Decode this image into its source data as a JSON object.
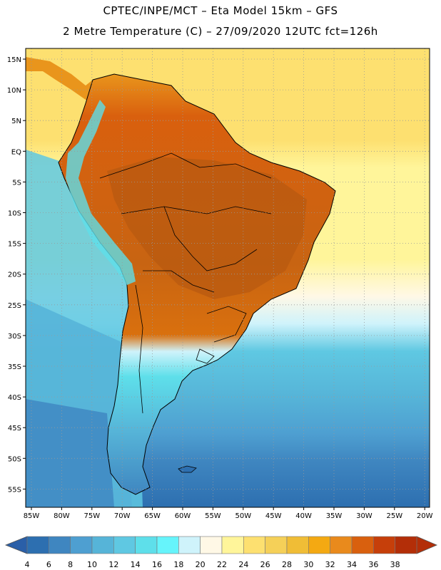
{
  "title_line1": "CPTEC/INPE/MCT  –   Eta Model 15km  –  GFS",
  "title_line2": "2 Metre Temperature (C) – 27/09/2020 12UTC fct=126h",
  "lat_labels": [
    "15N",
    "10N",
    "5N",
    "EQ",
    "5S",
    "10S",
    "15S",
    "20S",
    "25S",
    "30S",
    "35S",
    "40S",
    "45S",
    "50S",
    "55S"
  ],
  "lon_labels": [
    "85W",
    "80W",
    "75W",
    "70W",
    "65W",
    "60W",
    "55W",
    "50W",
    "45W",
    "40W",
    "35W",
    "30W",
    "25W",
    "20W"
  ],
  "colorbar": {
    "values": [
      "4",
      "6",
      "8",
      "10",
      "12",
      "14",
      "16",
      "18",
      "20",
      "22",
      "24",
      "26",
      "28",
      "30",
      "32",
      "34",
      "36",
      "38"
    ],
    "colors": [
      "#2d6fb0",
      "#3f86c0",
      "#4e9fd1",
      "#56b4d8",
      "#5fc8e2",
      "#5edfea",
      "#66f4fb",
      "#cff3fb",
      "#fff8e6",
      "#fff59a",
      "#fde070",
      "#f5d058",
      "#f0bd36",
      "#f4a912",
      "#e98a1c",
      "#d9600e",
      "#c63f0a",
      "#b32e08"
    ],
    "low_color": "#2a5fa8",
    "high_color": "#b32e08"
  },
  "map_colors": {
    "ocean_tropical": "#fde070",
    "ocean_subtropical": "#fff59a",
    "ocean_mild": "#cff3fb",
    "ocean_cool": "#5fc8e2",
    "ocean_cold": "#4e9fd1",
    "ocean_polar": "#2d6fb0",
    "land_hot": "#c86412",
    "land_warm": "#e9951c",
    "land_cool": "#5edfea",
    "land_cold": "#56b4d8",
    "border": "#000000"
  }
}
